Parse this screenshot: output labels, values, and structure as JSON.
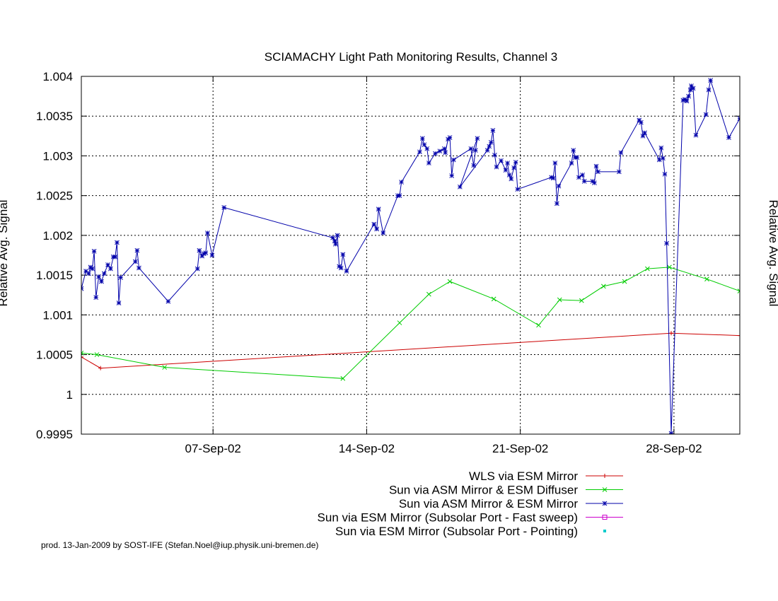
{
  "chart_data": {
    "type": "line",
    "title": "SCIAMACHY Light Path Monitoring Results, Channel 3",
    "ylabel": "Relative Avg. Signal",
    "ylabel_right": "Relative Avg. Signal",
    "xlim": [
      "2002-09-01",
      "2002-10-01"
    ],
    "ylim": [
      0.9995,
      1.004
    ],
    "yticks": [
      0.9995,
      1,
      1.0005,
      1.001,
      1.0015,
      1.002,
      1.0025,
      1.003,
      1.0035,
      1.004
    ],
    "ytick_labels": [
      "0.9995",
      "1",
      "1.0005",
      "1.001",
      "1.0015",
      "1.002",
      "1.0025",
      "1.003",
      "1.0035",
      "1.004"
    ],
    "xticks": [
      "2002-09-07",
      "2002-09-14",
      "2002-09-21",
      "2002-09-28"
    ],
    "xtick_labels": [
      "07-Sep-02",
      "14-Sep-02",
      "21-Sep-02",
      "28-Sep-02"
    ],
    "grid": true,
    "legend_position": "bottom",
    "series": [
      {
        "name": "WLS via ESM Mirror",
        "color": "#cc0000",
        "marker": "plus",
        "points": [
          [
            "2002-09-01T00:00",
            1.00047
          ],
          [
            "2002-09-01T21:00",
            1.00033
          ],
          [
            "2002-09-27T21:00",
            1.00077
          ],
          [
            "2002-10-01T00:00",
            1.00074
          ]
        ]
      },
      {
        "name": "Sun via ASM Mirror & ESM Diffuser",
        "color": "#00cc00",
        "marker": "x",
        "points": [
          [
            "2002-09-01T00:00",
            1.00052
          ],
          [
            "2002-09-01T17:00",
            1.0005
          ],
          [
            "2002-09-04T19:00",
            1.00034
          ],
          [
            "2002-09-12T22:00",
            1.0002
          ],
          [
            "2002-09-15T12:00",
            1.0009
          ],
          [
            "2002-09-16T20:00",
            1.00126
          ],
          [
            "2002-09-17T19:00",
            1.00142
          ],
          [
            "2002-09-19T19:00",
            1.0012
          ],
          [
            "2002-09-21T20:00",
            1.00087
          ],
          [
            "2002-09-22T19:00",
            1.00119
          ],
          [
            "2002-09-23T19:00",
            1.00118
          ],
          [
            "2002-09-24T19:00",
            1.00136
          ],
          [
            "2002-09-25T18:00",
            1.00142
          ],
          [
            "2002-09-26T19:00",
            1.00158
          ],
          [
            "2002-09-27T19:00",
            1.0016
          ],
          [
            "2002-09-29T12:00",
            1.00145
          ],
          [
            "2002-10-01T00:00",
            1.0013
          ]
        ]
      },
      {
        "name": "Sun via ASM Mirror & ESM Mirror",
        "color": "#0000aa",
        "marker": "star",
        "points": [
          [
            "2002-09-01T00:00",
            1.00133
          ],
          [
            "2002-09-01T05:00",
            1.00155
          ],
          [
            "2002-09-01T08:00",
            1.00152
          ],
          [
            "2002-09-01T10:00",
            1.0016
          ],
          [
            "2002-09-01T12:00",
            1.00158
          ],
          [
            "2002-09-01T14:00",
            1.0018
          ],
          [
            "2002-09-01T16:00",
            1.00122
          ],
          [
            "2002-09-01T19:00",
            1.00148
          ],
          [
            "2002-09-01T22:00",
            1.00142
          ],
          [
            "2002-09-02T01:00",
            1.00152
          ],
          [
            "2002-09-02T05:00",
            1.00163
          ],
          [
            "2002-09-02T08:00",
            1.00158
          ],
          [
            "2002-09-02T11:00",
            1.00173
          ],
          [
            "2002-09-02T13:00",
            1.00173
          ],
          [
            "2002-09-02T15:00",
            1.00191
          ],
          [
            "2002-09-02T17:00",
            1.00115
          ],
          [
            "2002-09-02T19:00",
            1.00147
          ],
          [
            "2002-09-03T11:00",
            1.00167
          ],
          [
            "2002-09-03T13:00",
            1.00181
          ],
          [
            "2002-09-03T15:00",
            1.00159
          ],
          [
            "2002-09-04T23:00",
            1.00117
          ],
          [
            "2002-09-06T07:00",
            1.00158
          ],
          [
            "2002-09-06T09:00",
            1.00181
          ],
          [
            "2002-09-06T12:00",
            1.00174
          ],
          [
            "2002-09-06T14:00",
            1.00177
          ],
          [
            "2002-09-06T16:00",
            1.00178
          ],
          [
            "2002-09-06T18:00",
            1.00203
          ],
          [
            "2002-09-06T23:00",
            1.00175
          ],
          [
            "2002-09-07T12:00",
            1.00235
          ],
          [
            "2002-09-12T11:00",
            1.00197
          ],
          [
            "2002-09-12T13:00",
            1.00193
          ],
          [
            "2002-09-12T14:00",
            1.00189
          ],
          [
            "2002-09-12T16:00",
            1.002
          ],
          [
            "2002-09-12T18:00",
            1.00161
          ],
          [
            "2002-09-12T20:00",
            1.00159
          ],
          [
            "2002-09-12T22:00",
            1.00176
          ],
          [
            "2002-09-13T02:00",
            1.00155
          ],
          [
            "2002-09-14T08:00",
            1.00214
          ],
          [
            "2002-09-14T11:00",
            1.00208
          ],
          [
            "2002-09-14T13:00",
            1.00233
          ],
          [
            "2002-09-14T18:00",
            1.00203
          ],
          [
            "2002-09-15T10:00",
            1.0025
          ],
          [
            "2002-09-15T12:00",
            1.0025
          ],
          [
            "2002-09-15T14:00",
            1.00267
          ],
          [
            "2002-09-16T10:00",
            1.00305
          ],
          [
            "2002-09-16T13:00",
            1.00322
          ],
          [
            "2002-09-16T15:00",
            1.00314
          ],
          [
            "2002-09-16T18:00",
            1.00309
          ],
          [
            "2002-09-16T20:00",
            1.00291
          ],
          [
            "2002-09-17T03:00",
            1.00303
          ],
          [
            "2002-09-17T08:00",
            1.00306
          ],
          [
            "2002-09-17T13:00",
            1.00309
          ],
          [
            "2002-09-17T14:00",
            1.00304
          ],
          [
            "2002-09-17T17:00",
            1.00321
          ],
          [
            "2002-09-17T19:00",
            1.00323
          ],
          [
            "2002-09-17T21:00",
            1.00275
          ],
          [
            "2002-09-17T23:00",
            1.00295
          ],
          [
            "2002-09-18T18:00",
            1.00309
          ],
          [
            "2002-09-18T21:00",
            1.00288
          ],
          [
            "2002-09-18T23:00",
            1.00307
          ],
          [
            "2002-09-19T01:00",
            1.00322
          ],
          [
            "2002-09-18T06:00",
            1.00261
          ],
          [
            "2002-09-19T12:00",
            1.00307
          ],
          [
            "2002-09-19T14:00",
            1.00312
          ],
          [
            "2002-09-19T16:00",
            1.00317
          ],
          [
            "2002-09-19T18:00",
            1.00332
          ],
          [
            "2002-09-19T20:00",
            1.00301
          ],
          [
            "2002-09-19T22:00",
            1.00286
          ],
          [
            "2002-09-20T03:00",
            1.00294
          ],
          [
            "2002-09-20T08:00",
            1.00282
          ],
          [
            "2002-09-20T10:00",
            1.00291
          ],
          [
            "2002-09-20T12:00",
            1.00276
          ],
          [
            "2002-09-20T14:00",
            1.00271
          ],
          [
            "2002-09-20T17:00",
            1.00285
          ],
          [
            "2002-09-20T19:00",
            1.00292
          ],
          [
            "2002-09-20T21:00",
            1.00258
          ],
          [
            "2002-09-22T10:00",
            1.00273
          ],
          [
            "2002-09-22T12:00",
            1.00272
          ],
          [
            "2002-09-22T14:00",
            1.00291
          ],
          [
            "2002-09-22T16:00",
            1.0024
          ],
          [
            "2002-09-22T18:00",
            1.00262
          ],
          [
            "2002-09-23T08:00",
            1.00291
          ],
          [
            "2002-09-23T10:00",
            1.00307
          ],
          [
            "2002-09-23T12:00",
            1.00298
          ],
          [
            "2002-09-23T14:00",
            1.00298
          ],
          [
            "2002-09-23T16:00",
            1.00273
          ],
          [
            "2002-09-23T20:00",
            1.00276
          ],
          [
            "2002-09-23T22:00",
            1.00268
          ],
          [
            "2002-09-24T07:00",
            1.00268
          ],
          [
            "2002-09-24T09:00",
            1.00266
          ],
          [
            "2002-09-24T11:00",
            1.00287
          ],
          [
            "2002-09-24T13:00",
            1.0028
          ],
          [
            "2002-09-25T12:00",
            1.0028
          ],
          [
            "2002-09-25T14:00",
            1.00304
          ],
          [
            "2002-09-26T10:00",
            1.00345
          ],
          [
            "2002-09-26T12:00",
            1.00342
          ],
          [
            "2002-09-26T14:00",
            1.00325
          ],
          [
            "2002-09-26T16:00",
            1.00329
          ],
          [
            "2002-09-27T08:00",
            1.00295
          ],
          [
            "2002-09-27T10:00",
            1.0031
          ],
          [
            "2002-09-27T12:00",
            1.00297
          ],
          [
            "2002-09-27T14:00",
            1.00277
          ],
          [
            "2002-09-27T16:00",
            1.0019
          ],
          [
            "2002-09-27T21:00",
            0.99951
          ],
          [
            "2002-09-28T10:00",
            1.0037
          ],
          [
            "2002-09-28T12:00",
            1.00371
          ],
          [
            "2002-09-28T14:00",
            1.00369
          ],
          [
            "2002-09-28T16:00",
            1.00375
          ],
          [
            "2002-09-28T18:00",
            1.00383
          ],
          [
            "2002-09-28T19:00",
            1.00388
          ],
          [
            "2002-09-28T21:00",
            1.00385
          ],
          [
            "2002-09-29T00:00",
            1.00326
          ],
          [
            "2002-09-29T11:00",
            1.00352
          ],
          [
            "2002-09-29T14:00",
            1.00383
          ],
          [
            "2002-09-29T16:00",
            1.00395
          ],
          [
            "2002-09-30T12:00",
            1.00323
          ],
          [
            "2002-10-01T00:00",
            1.00347
          ]
        ]
      },
      {
        "name": "Sun via ESM Mirror (Subsolar Port - Fast sweep)",
        "color": "#cc00cc",
        "marker": "box",
        "points": []
      },
      {
        "name": "Sun via ESM Mirror (Subsolar Port - Pointing)",
        "color": "#00cccc",
        "marker": "dot",
        "points": []
      }
    ]
  },
  "footer": {
    "credit": "prod. 13-Jan-2009 by SOST-IFE (Stefan.Noel@iup.physik.uni-bremen.de)"
  }
}
